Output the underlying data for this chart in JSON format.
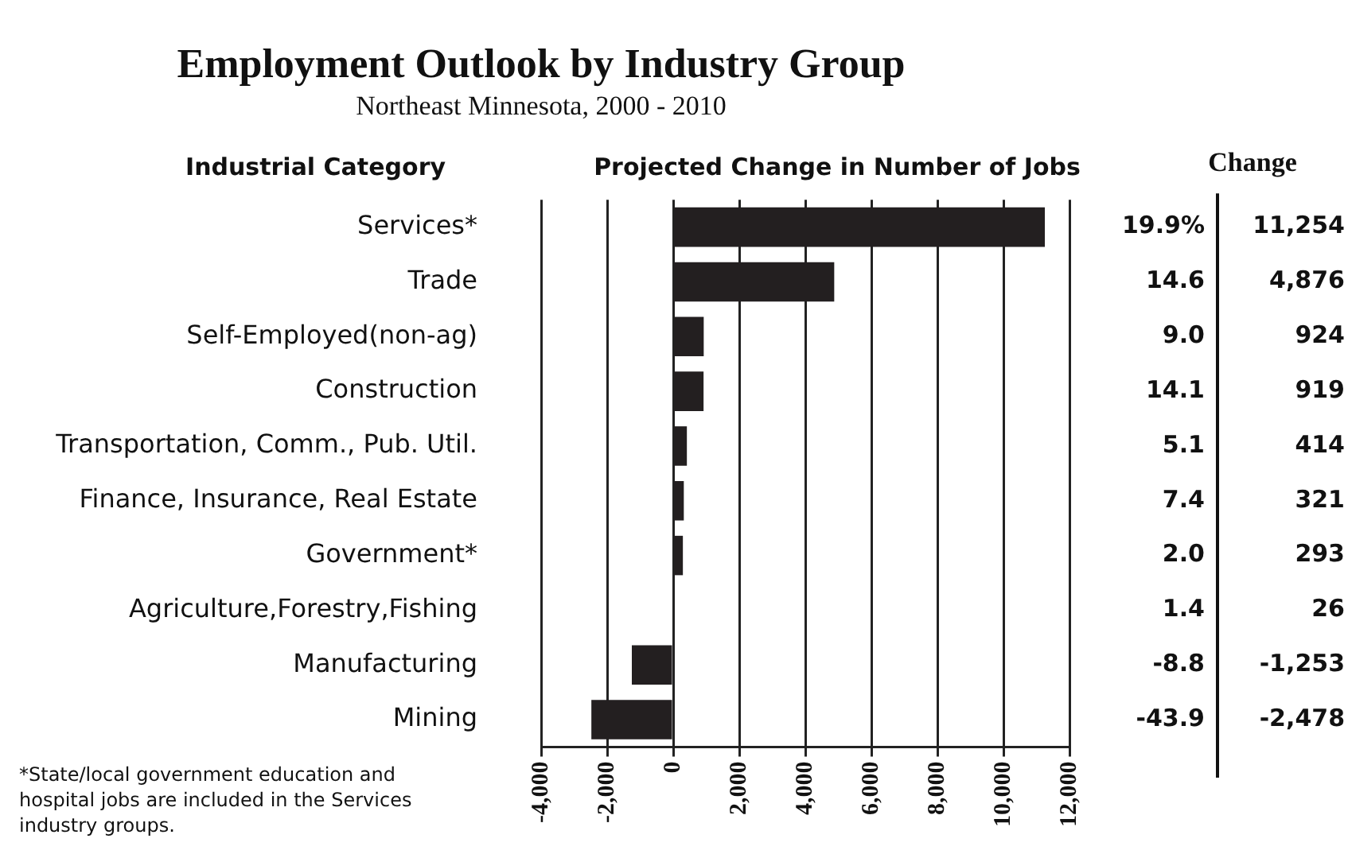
{
  "chart_data": {
    "type": "bar",
    "orientation": "horizontal",
    "title": "Employment Outlook by Industry Group",
    "subtitle": "Northeast Minnesota, 2000 - 2010",
    "xlabel": "Projected Change in Number of Jobs",
    "ylabel": "Industrial Category",
    "categories": [
      "Services*",
      "Trade",
      "Self-Employed(non-ag)",
      "Construction",
      "Transportation, Comm., Pub. Util.",
      "Finance, Insurance, Real Estate",
      "Government*",
      "Agriculture,Forestry,Fishing",
      "Manufacturing",
      "Mining"
    ],
    "values": [
      11254,
      4876,
      924,
      919,
      414,
      321,
      293,
      26,
      -1253,
      -2478
    ],
    "value_labels": [
      "11,254",
      "4,876",
      "924",
      "919",
      "414",
      "321",
      "293",
      "26",
      "-1,253",
      "-2,478"
    ],
    "color": "#231f20",
    "xlim": [
      -4000,
      12000
    ],
    "xticks": [
      {
        "value": -4000,
        "label": "-4,000"
      },
      {
        "value": -2000,
        "label": "-2,000"
      },
      0,
      {
        "value": 2000,
        "label": "2,000"
      },
      {
        "value": 4000,
        "label": "4,000"
      },
      {
        "value": 6000,
        "label": "6,000"
      },
      {
        "value": 8000,
        "label": "8,000"
      },
      {
        "value": 10000,
        "label": "10,000"
      },
      {
        "value": 12000,
        "label": "12,000"
      }
    ],
    "grid": "x",
    "legend": false,
    "annotations": [
      "Change",
      "19.9%",
      "14.6",
      "9.0",
      "14.1",
      "5.1",
      "7.4",
      "2.0",
      "1.4",
      "-8.8",
      "-43.9",
      "*State/local government education and hospital jobs are included in the Services industry groups."
    ]
  }
}
